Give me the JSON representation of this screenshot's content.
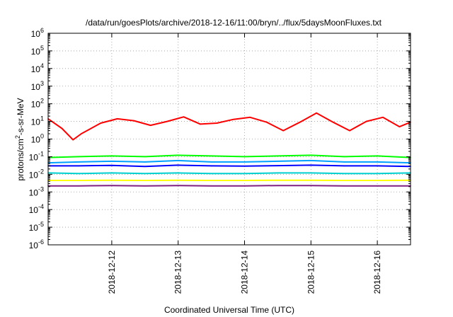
{
  "chart_data": {
    "type": "line",
    "title": "/data/run/goesPlots/archive/2018-12-16/11:00/bryn/../flux/5daysMoonFluxes.txt",
    "xlabel": "Coordinated Universal Time (UTC)",
    "ylabel": {
      "prefix": "protons/cm",
      "sup": "2",
      "suffix": "-s-sr-MeV"
    },
    "xlim": [
      "2018-12-11 01:00",
      "2018-12-16 12:00"
    ],
    "ylim": [
      1e-06,
      1000000.0
    ],
    "yscale": "log",
    "grid": true,
    "x_ticks": [
      {
        "date": "2018-12-12",
        "label": "2018-12-12"
      },
      {
        "date": "2018-12-13",
        "label": "2018-12-13"
      },
      {
        "date": "2018-12-14",
        "label": "2018-12-14"
      },
      {
        "date": "2018-12-15",
        "label": "2018-12-15"
      },
      {
        "date": "2018-12-16",
        "label": "2018-12-16"
      }
    ],
    "y_ticks": [
      {
        "value": 1000000.0,
        "base": "10",
        "exp": "6"
      },
      {
        "value": 100000.0,
        "base": "10",
        "exp": "5"
      },
      {
        "value": 10000.0,
        "base": "10",
        "exp": "4"
      },
      {
        "value": 1000.0,
        "base": "10",
        "exp": "3"
      },
      {
        "value": 100.0,
        "base": "10",
        "exp": "2"
      },
      {
        "value": 10.0,
        "base": "10",
        "exp": "1"
      },
      {
        "value": 1.0,
        "base": "10",
        "exp": "0"
      },
      {
        "value": 0.1,
        "base": "10",
        "exp": "-1"
      },
      {
        "value": 0.01,
        "base": "10",
        "exp": "-2"
      },
      {
        "value": 0.001,
        "base": "10",
        "exp": "-3"
      },
      {
        "value": 0.0001,
        "base": "10",
        "exp": "-4"
      },
      {
        "value": 1e-05,
        "base": "10",
        "exp": "-5"
      },
      {
        "value": 1e-06,
        "base": "10",
        "exp": "-6"
      }
    ],
    "series": [
      {
        "color": "#ff0000",
        "x": [
          "2018-12-11 01:00",
          "2018-12-11 06:00",
          "2018-12-11 10:00",
          "2018-12-11 13:00",
          "2018-12-11 20:00",
          "2018-12-12 02:00",
          "2018-12-12 08:00",
          "2018-12-12 14:00",
          "2018-12-12 20:00",
          "2018-12-13 02:00",
          "2018-12-13 08:00",
          "2018-12-13 14:00",
          "2018-12-13 20:00",
          "2018-12-14 02:00",
          "2018-12-14 08:00",
          "2018-12-14 14:00",
          "2018-12-14 20:00",
          "2018-12-15 02:00",
          "2018-12-15 08:00",
          "2018-12-15 14:00",
          "2018-12-15 20:00",
          "2018-12-16 02:00",
          "2018-12-16 08:00",
          "2018-12-16 12:00"
        ],
        "y": [
          14,
          4,
          0.9,
          2,
          8,
          14,
          11,
          6,
          10,
          18,
          7,
          8,
          13,
          17,
          9,
          3,
          9,
          30,
          9,
          3,
          10,
          17,
          5,
          9
        ]
      },
      {
        "color": "#00ff00",
        "x": [
          "2018-12-11 01:00",
          "2018-12-11 12:00",
          "2018-12-12 00:00",
          "2018-12-12 12:00",
          "2018-12-13 00:00",
          "2018-12-13 12:00",
          "2018-12-14 00:00",
          "2018-12-14 12:00",
          "2018-12-15 00:00",
          "2018-12-15 12:00",
          "2018-12-16 00:00",
          "2018-12-16 12:00"
        ],
        "y": [
          0.09,
          0.1,
          0.11,
          0.1,
          0.12,
          0.11,
          0.1,
          0.11,
          0.12,
          0.1,
          0.11,
          0.09
        ]
      },
      {
        "color": "#00a0ff",
        "x": [
          "2018-12-11 01:00",
          "2018-12-11 12:00",
          "2018-12-12 00:00",
          "2018-12-12 12:00",
          "2018-12-13 00:00",
          "2018-12-13 12:00",
          "2018-12-14 00:00",
          "2018-12-14 12:00",
          "2018-12-15 00:00",
          "2018-12-15 12:00",
          "2018-12-16 00:00",
          "2018-12-16 12:00"
        ],
        "y": [
          0.045,
          0.05,
          0.055,
          0.05,
          0.06,
          0.05,
          0.05,
          0.055,
          0.06,
          0.05,
          0.05,
          0.045
        ]
      },
      {
        "color": "#0000ff",
        "x": [
          "2018-12-11 01:00",
          "2018-12-11 12:00",
          "2018-12-12 00:00",
          "2018-12-12 12:00",
          "2018-12-13 00:00",
          "2018-12-13 12:00",
          "2018-12-14 00:00",
          "2018-12-14 12:00",
          "2018-12-15 00:00",
          "2018-12-15 12:00",
          "2018-12-16 00:00",
          "2018-12-16 12:00"
        ],
        "y": [
          0.03,
          0.03,
          0.032,
          0.028,
          0.033,
          0.03,
          0.029,
          0.031,
          0.033,
          0.03,
          0.03,
          0.028
        ]
      },
      {
        "color": "#00d0d0",
        "x": [
          "2018-12-11 01:00",
          "2018-12-11 12:00",
          "2018-12-12 00:00",
          "2018-12-12 12:00",
          "2018-12-13 00:00",
          "2018-12-13 12:00",
          "2018-12-14 00:00",
          "2018-12-14 12:00",
          "2018-12-15 00:00",
          "2018-12-15 12:00",
          "2018-12-16 00:00",
          "2018-12-16 12:00"
        ],
        "y": [
          0.012,
          0.011,
          0.012,
          0.011,
          0.012,
          0.011,
          0.011,
          0.012,
          0.012,
          0.011,
          0.011,
          0.012
        ]
      },
      {
        "color": "#ffff00",
        "x": [
          "2018-12-11 01:00",
          "2018-12-11 12:00",
          "2018-12-12 00:00",
          "2018-12-12 12:00",
          "2018-12-13 00:00",
          "2018-12-13 12:00",
          "2018-12-14 00:00",
          "2018-12-14 12:00",
          "2018-12-15 00:00",
          "2018-12-15 12:00",
          "2018-12-16 00:00",
          "2018-12-16 12:00"
        ],
        "y": [
          0.0045,
          0.0045,
          0.0046,
          0.0045,
          0.0046,
          0.0045,
          0.0045,
          0.0046,
          0.0046,
          0.0045,
          0.0045,
          0.0046
        ]
      },
      {
        "color": "#802080",
        "x": [
          "2018-12-11 01:00",
          "2018-12-11 12:00",
          "2018-12-12 00:00",
          "2018-12-12 12:00",
          "2018-12-13 00:00",
          "2018-12-13 12:00",
          "2018-12-14 00:00",
          "2018-12-14 12:00",
          "2018-12-15 00:00",
          "2018-12-15 12:00",
          "2018-12-16 00:00",
          "2018-12-16 12:00"
        ],
        "y": [
          0.0022,
          0.0022,
          0.0023,
          0.0022,
          0.0023,
          0.0022,
          0.0022,
          0.0023,
          0.0023,
          0.0022,
          0.0022,
          0.0022
        ]
      }
    ]
  }
}
